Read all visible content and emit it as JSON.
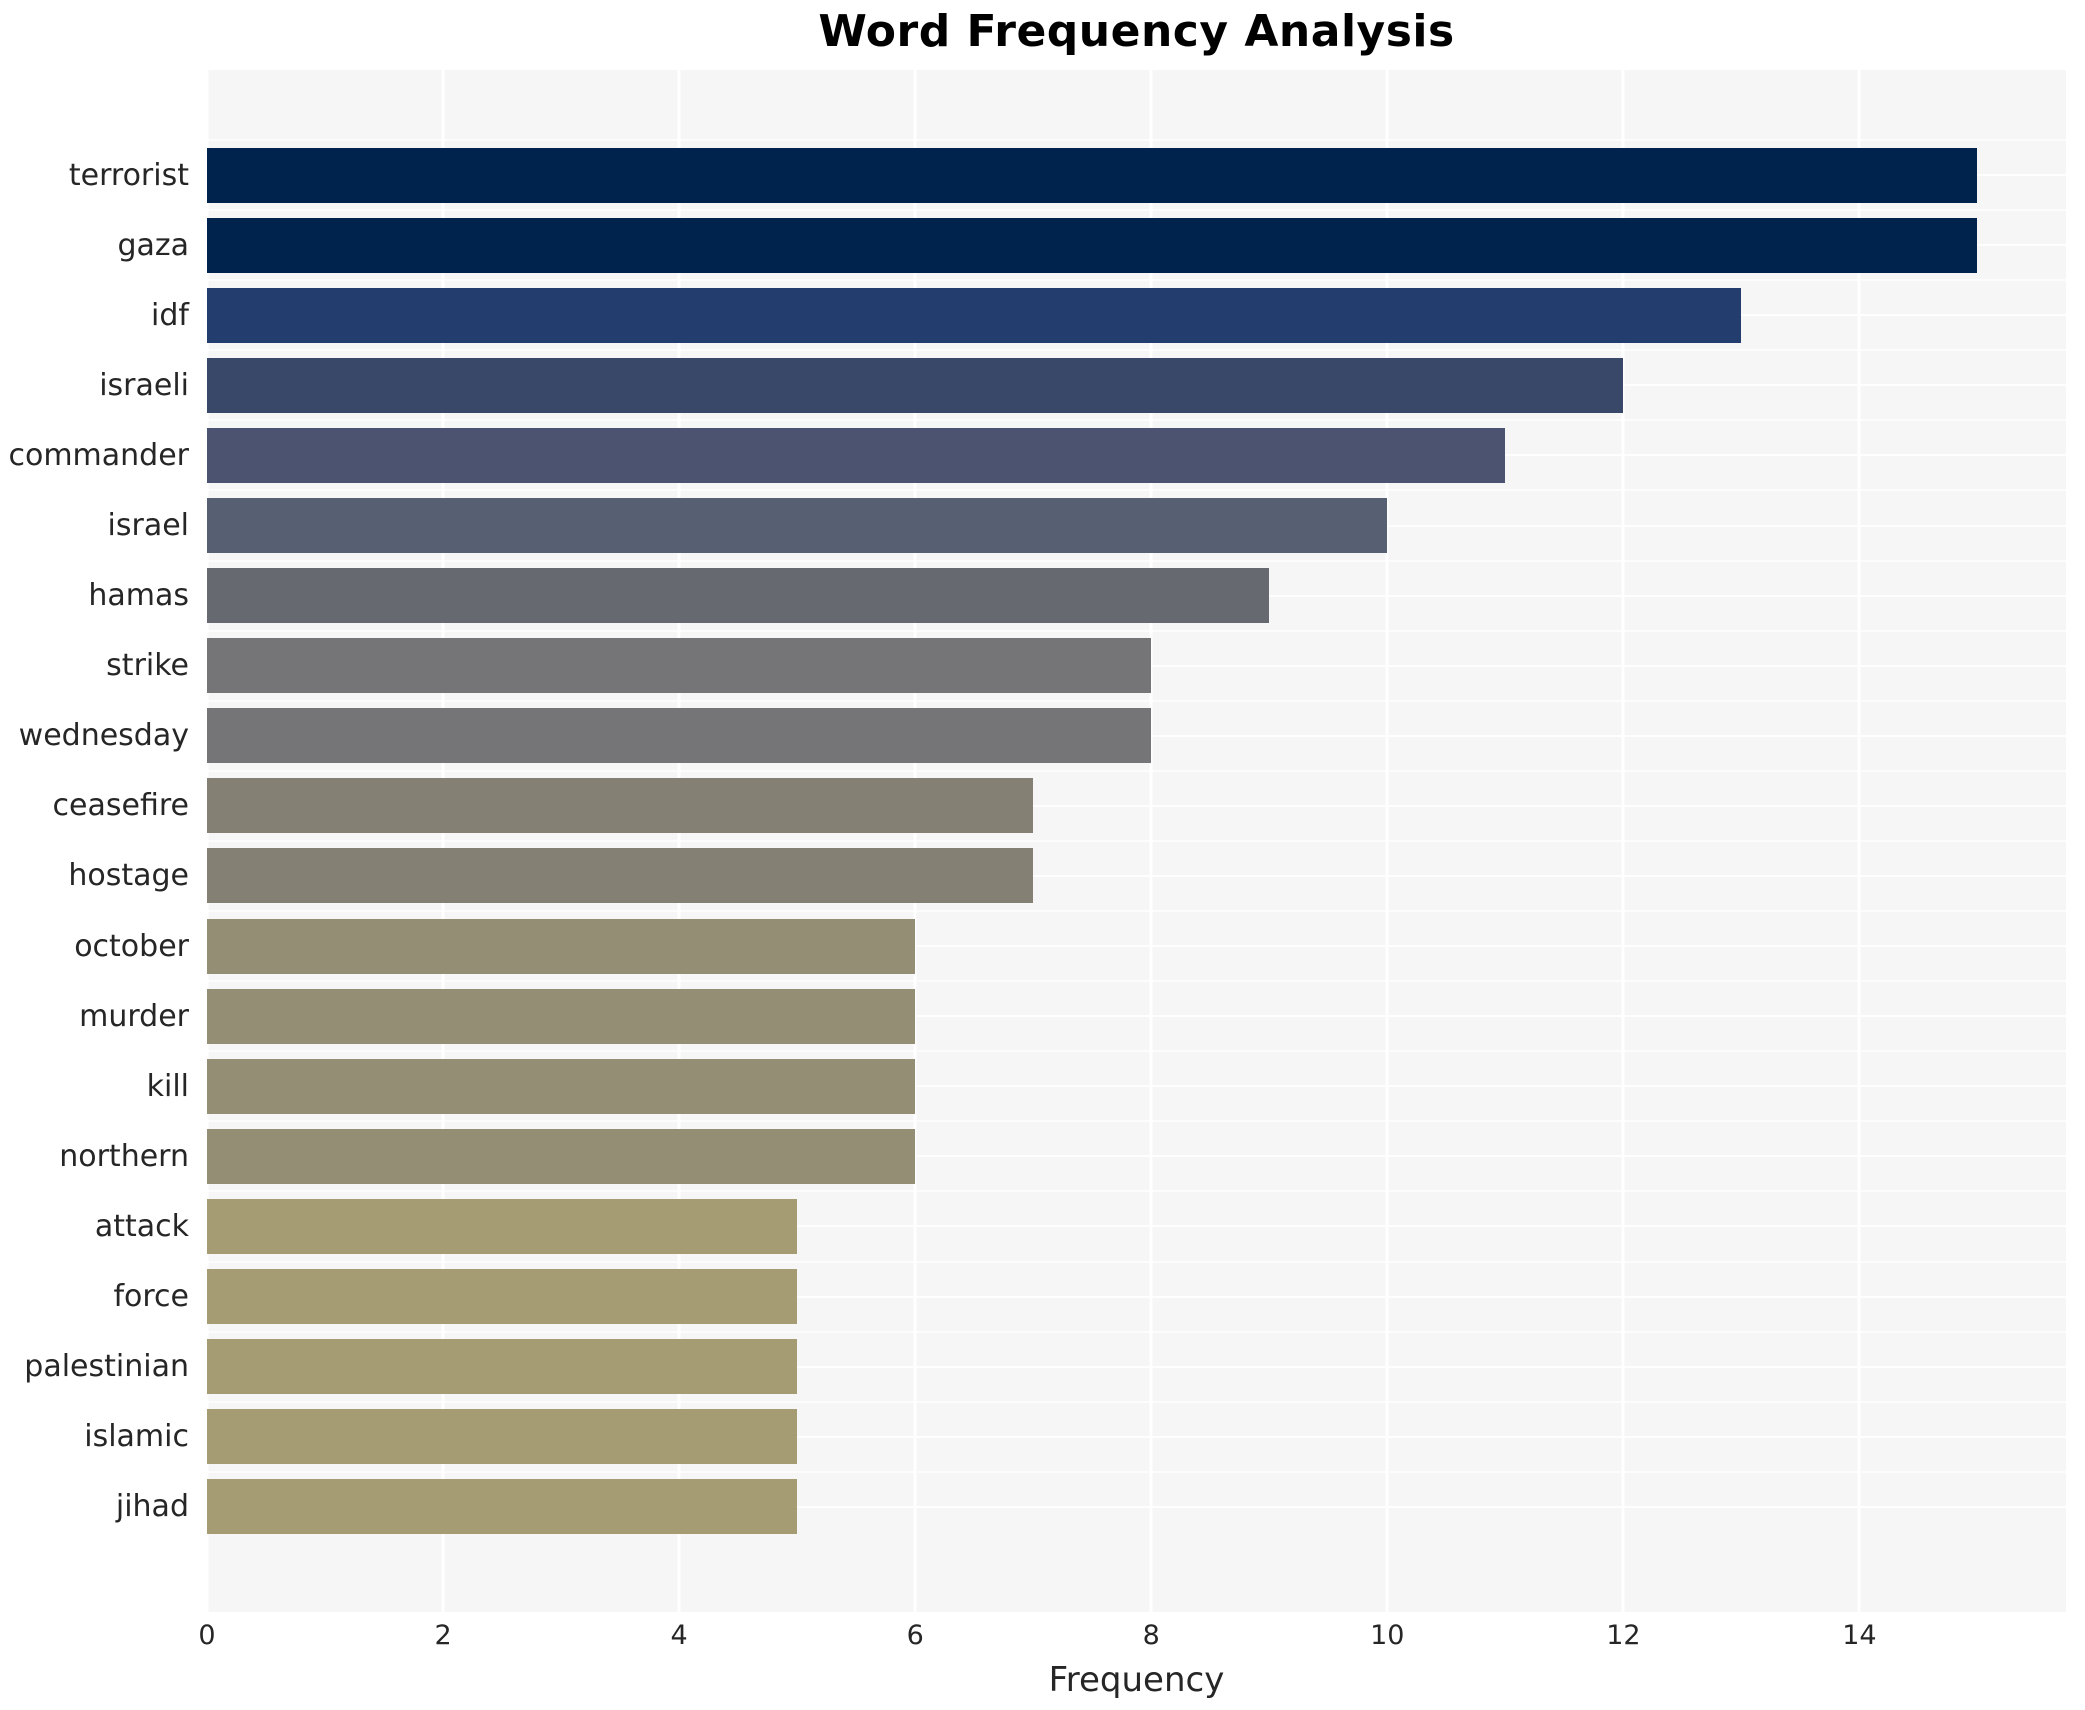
{
  "title": "Word Frequency Analysis",
  "chart_data": {
    "type": "bar",
    "orientation": "horizontal",
    "title": "Word Frequency Analysis",
    "xlabel": "Frequency",
    "ylabel": "",
    "xlim": [
      0,
      15.75
    ],
    "x_ticks": [
      0,
      2,
      4,
      6,
      8,
      10,
      12,
      14
    ],
    "grid": true,
    "legend": "none",
    "plot_background": "#f6f6f6",
    "grid_color": "#ffffff",
    "categories": [
      "terrorist",
      "gaza",
      "idf",
      "israeli",
      "commander",
      "israel",
      "hamas",
      "strike",
      "wednesday",
      "ceasefire",
      "hostage",
      "october",
      "murder",
      "kill",
      "northern",
      "attack",
      "force",
      "palestinian",
      "islamic",
      "jihad"
    ],
    "values": [
      15,
      15,
      13,
      12,
      11,
      10,
      9,
      8,
      8,
      7,
      7,
      6,
      6,
      6,
      6,
      5,
      5,
      5,
      5,
      5
    ],
    "bar_colors": [
      "#00234d",
      "#00234d",
      "#233e6e",
      "#394769",
      "#4b5370",
      "#575f73",
      "#666a70",
      "#757578",
      "#757578",
      "#848174",
      "#848174",
      "#948e74",
      "#948e74",
      "#948e74",
      "#948e74",
      "#a59c73",
      "#a59c73",
      "#a59c73",
      "#a59c73",
      "#a59c73"
    ]
  }
}
